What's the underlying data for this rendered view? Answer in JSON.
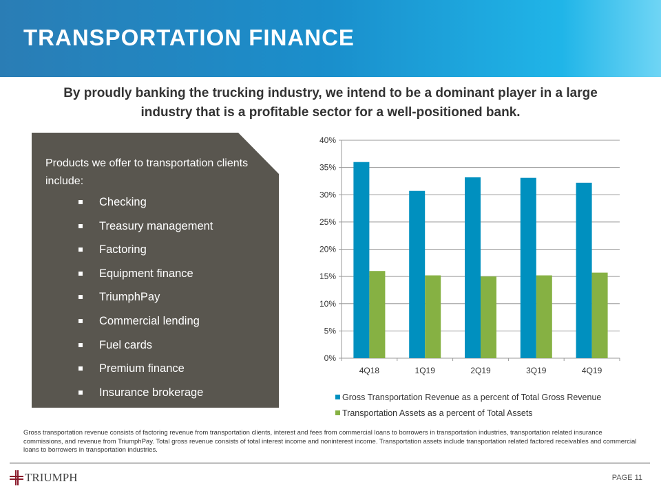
{
  "header": {
    "title": "TRANSPORTATION FINANCE"
  },
  "subtitle": "By proudly banking the trucking industry, we intend to be a dominant player in a large industry that is a profitable sector for a well-positioned bank.",
  "panel": {
    "intro": "Products we offer to transportation clients include:",
    "items": [
      "Checking",
      "Treasury management",
      "Factoring",
      "Equipment finance",
      "TriumphPay",
      "Commercial lending",
      "Fuel cards",
      "Premium finance",
      "Insurance brokerage"
    ]
  },
  "chart_data": {
    "type": "bar",
    "categories": [
      "4Q18",
      "1Q19",
      "2Q19",
      "3Q19",
      "4Q19"
    ],
    "series": [
      {
        "name": "Gross Transportation Revenue as a percent of Total Gross Revenue",
        "values": [
          36.0,
          30.7,
          33.2,
          33.1,
          32.2
        ],
        "color": "#0090bf"
      },
      {
        "name": "Transportation Assets as a percent of Total Assets",
        "values": [
          16.0,
          15.2,
          15.0,
          15.2,
          15.7
        ],
        "color": "#86b143"
      }
    ],
    "ylim": [
      0,
      40
    ],
    "yticks": [
      "0%",
      "5%",
      "10%",
      "15%",
      "20%",
      "25%",
      "30%",
      "35%",
      "40%"
    ],
    "grid": true,
    "legend": "bottom"
  },
  "footnote": "Gross transportation revenue consists of factoring revenue from transportation clients, interest and fees from commercial loans to borrowers in transportation industries, transportation related insurance commissions, and revenue from TriumphPay.  Total gross revenue consists of total interest income and noninterest income.  Transportation assets include transportation related factored receivables and commercial loans to borrowers in transportation industries.",
  "footer": {
    "logo": "TRIUMPH",
    "page": "PAGE 11"
  }
}
